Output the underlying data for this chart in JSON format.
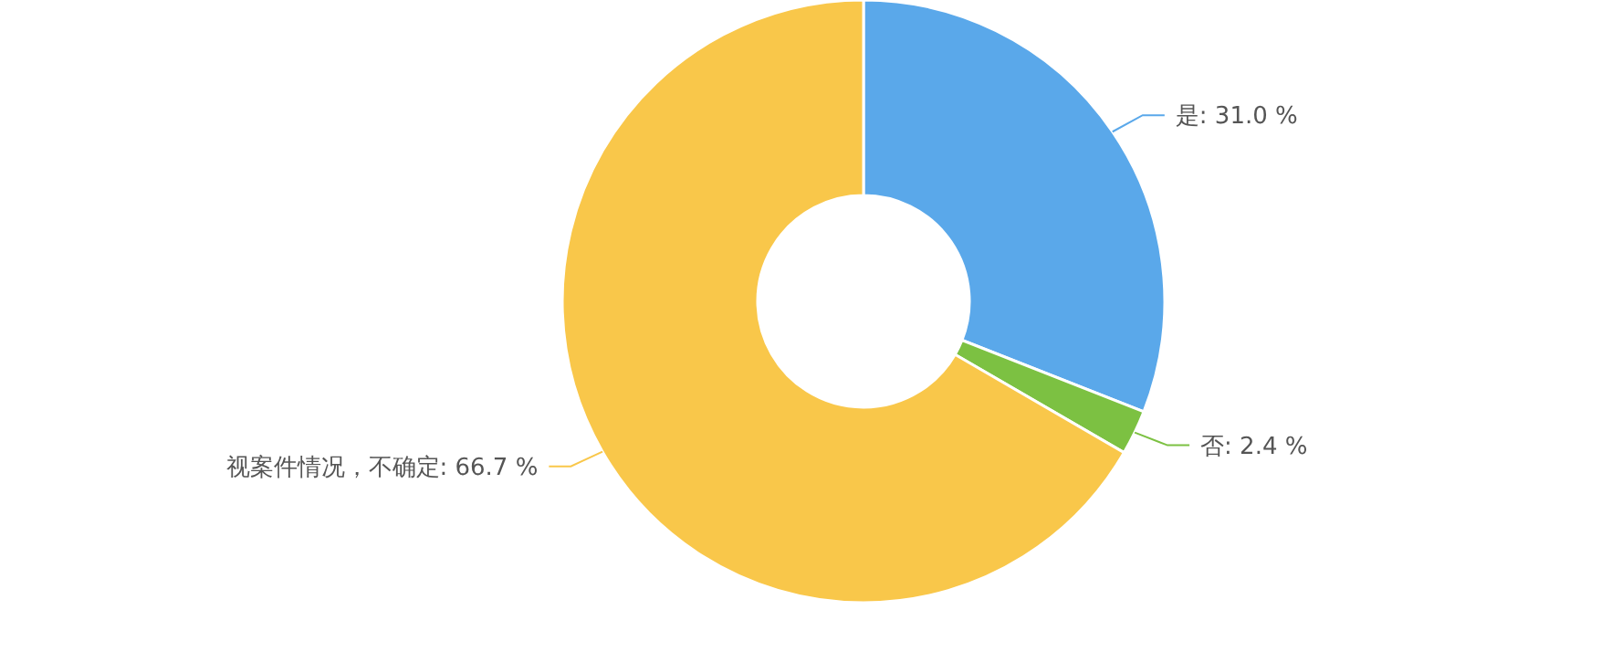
{
  "chart_data": {
    "type": "donut",
    "categories": [
      "是",
      "否",
      "视案件情况，不确定"
    ],
    "values": [
      31.0,
      2.4,
      66.7
    ],
    "value_labels": [
      "31.0 %",
      "2.4 %",
      "66.7 %"
    ],
    "colors": [
      "#5aa8ea",
      "#7cc142",
      "#f9c74a"
    ]
  }
}
